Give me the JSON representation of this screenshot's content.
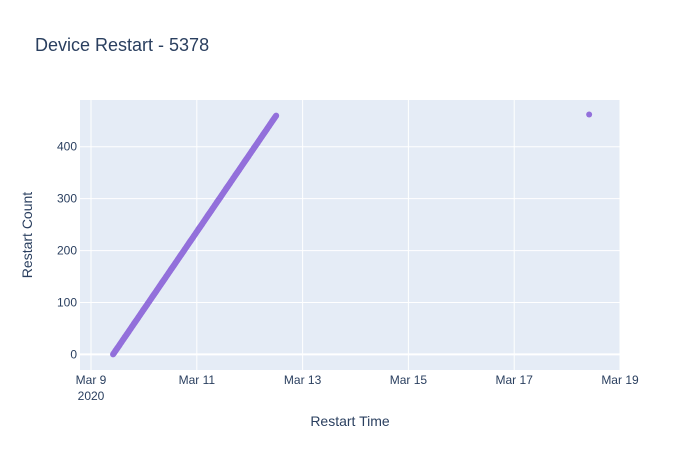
{
  "chart_data": {
    "type": "scatter",
    "title": "Device Restart - 5378",
    "xlabel": "Restart Time",
    "ylabel": "Restart Count",
    "xlim": [
      "2020-03-08T19:00:00",
      "2020-03-19T00:00:00"
    ],
    "ylim": [
      -30,
      490
    ],
    "x_ticks": [
      {
        "date": "2020-03-09",
        "label": "Mar 9",
        "sublabel": "2020"
      },
      {
        "date": "2020-03-11",
        "label": "Mar 11",
        "sublabel": ""
      },
      {
        "date": "2020-03-13",
        "label": "Mar 13",
        "sublabel": ""
      },
      {
        "date": "2020-03-15",
        "label": "Mar 15",
        "sublabel": ""
      },
      {
        "date": "2020-03-17",
        "label": "Mar 17",
        "sublabel": ""
      },
      {
        "date": "2020-03-19",
        "label": "Mar 19",
        "sublabel": ""
      }
    ],
    "y_ticks": [
      0,
      100,
      200,
      300,
      400
    ],
    "grid": true,
    "marker_color": "#9370db",
    "series": [
      {
        "trend": {
          "start": {
            "x": "2020-03-09T10:00:00",
            "y": 0
          },
          "end": {
            "x": "2020-03-12T12:00:00",
            "y": 460
          },
          "count": 461
        },
        "points": [
          {
            "x": "2020-03-18T10:00:00",
            "y": 462
          }
        ]
      }
    ]
  },
  "colors": {
    "plot_bg": "#e5ecf6",
    "grid": "#ffffff",
    "text": "#2a3f5f"
  }
}
